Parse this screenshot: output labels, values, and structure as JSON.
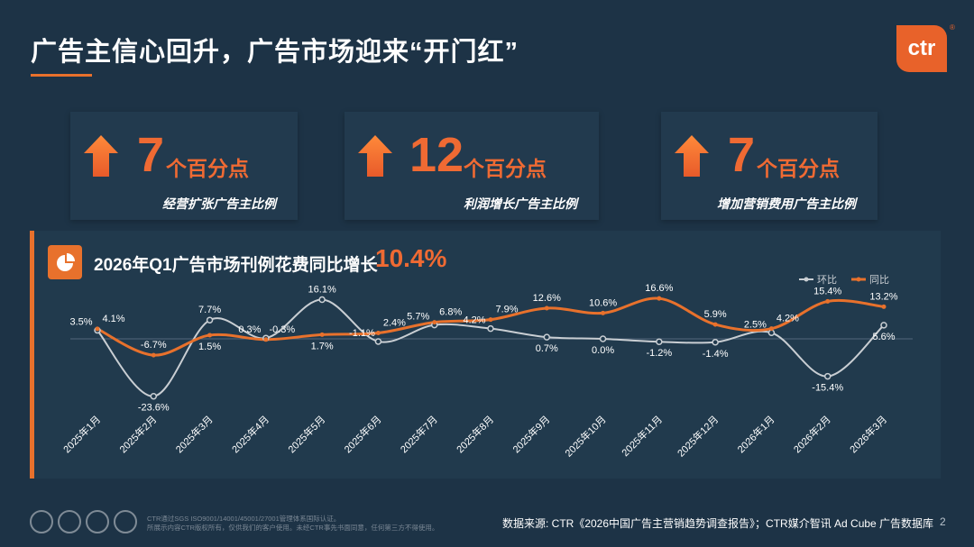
{
  "header": {
    "title": "广告主信心回升，广告市场迎来“开门红”",
    "logo": "ctr",
    "logo_reg": "®"
  },
  "kpis": [
    {
      "value": "7",
      "unit": "个百分点",
      "label": "经营扩张广告主比例",
      "icon": "arrow-up-icon"
    },
    {
      "value": "12",
      "unit": "个百分点",
      "label": "利润增长广告主比例",
      "icon": "arrow-up-icon"
    },
    {
      "value": "7",
      "unit": "个百分点",
      "label": "增加营销费用广告主比例",
      "icon": "arrow-up-icon"
    }
  ],
  "chart_panel": {
    "title": "2026年Q1广告市场刊例花费同比增长",
    "highlight": "10.4%",
    "icon": "pie-chart-icon"
  },
  "chart_data": {
    "type": "line",
    "categories": [
      "2025年1月",
      "2025年2月",
      "2025年3月",
      "2025年4月",
      "2025年5月",
      "2025年6月",
      "2025年7月",
      "2025年8月",
      "2025年9月",
      "2025年10月",
      "2025年11月",
      "2025年12月",
      "2026年1月",
      "2026年2月",
      "2026年3月"
    ],
    "series": [
      {
        "name": "环比",
        "color": "#c9ced3",
        "values": [
          3.5,
          -23.6,
          7.7,
          0.3,
          16.1,
          -1.1,
          5.7,
          4.2,
          0.7,
          0.0,
          -1.2,
          -1.4,
          2.5,
          -15.4,
          5.6
        ]
      },
      {
        "name": "同比",
        "color": "#e8712c",
        "values": [
          4.1,
          -6.7,
          1.5,
          -0.3,
          1.7,
          2.4,
          6.8,
          7.9,
          12.6,
          10.6,
          16.6,
          5.9,
          4.2,
          15.4,
          13.2
        ]
      }
    ],
    "labels": {
      "环比": [
        "3.5%",
        "-23.6%",
        "7.7%",
        "0.3%",
        "16.1%",
        "-1.1%",
        "5.7%",
        "4.2%",
        "0.7%",
        "0.0%",
        "-1.2%",
        "-1.4%",
        "2.5%",
        "-15.4%",
        "5.6%"
      ],
      "同比": [
        "4.1%",
        "-6.7%",
        "1.5%",
        "-0.3%",
        "1.7%",
        "2.4%",
        "6.8%",
        "7.9%",
        "12.6%",
        "10.6%",
        "16.6%",
        "5.9%",
        "4.2%",
        "15.4%",
        "13.2%"
      ]
    },
    "legend": "top-right",
    "grid": false
  },
  "footer": {
    "source": "数据来源: CTR《2026中国广告主营销趋势调查报告》；CTR媒介智讯 Ad Cube 广告数据库",
    "page": "2",
    "cert_line1": "CTR通过SGS ISO9001/14001/45001/27001管理体系国际认证。",
    "cert_line2": "所展示内容CTR版权所有，仅供我们的客户使用。未经CTR事先书面同意，任何第三方不得使用。"
  }
}
